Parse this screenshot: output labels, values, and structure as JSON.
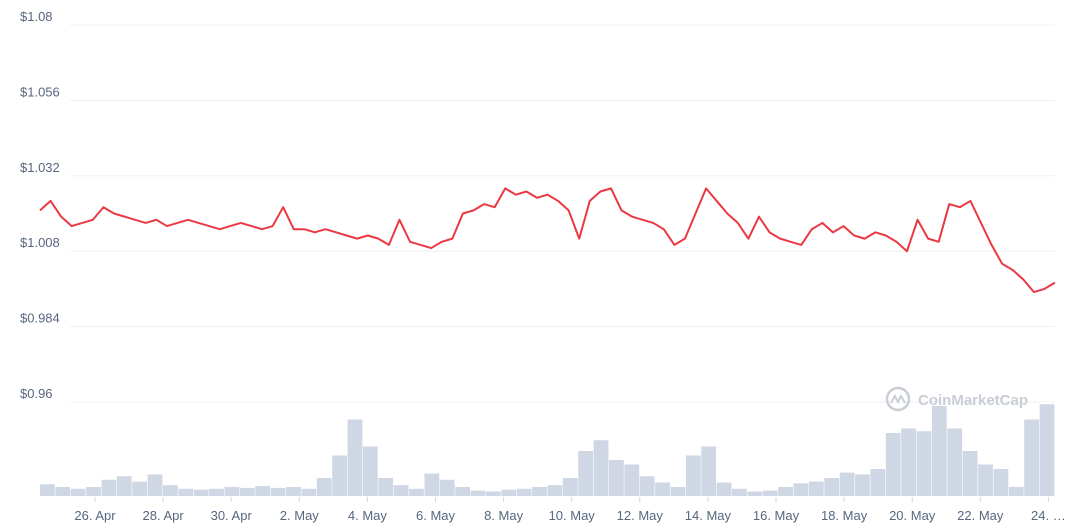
{
  "chart_data": {
    "type": "line",
    "title": "",
    "xlabel": "",
    "ylabel": "",
    "ylim": [
      0.96,
      1.08
    ],
    "yticks": [
      "$1.08",
      "$1.056",
      "$1.032",
      "$1.008",
      "$0.984",
      "$0.96"
    ],
    "ytick_values": [
      1.08,
      1.056,
      1.032,
      1.008,
      0.984,
      0.96
    ],
    "xticks": [
      "26. Apr",
      "28. Apr",
      "30. Apr",
      "2. May",
      "4. May",
      "6. May",
      "8. May",
      "10. May",
      "12. May",
      "14. May",
      "16. May",
      "18. May",
      "20. May",
      "22. May",
      "24. …"
    ],
    "grid": true,
    "line_color": "#ea3943",
    "volume_color": "#cfd6e4",
    "series": [
      {
        "values": [
          1.021,
          1.024,
          1.019,
          1.016,
          1.017,
          1.018,
          1.022,
          1.02,
          1.019,
          1.018,
          1.017,
          1.018,
          1.016,
          1.017,
          1.018,
          1.017,
          1.016,
          1.015,
          1.016,
          1.017,
          1.016,
          1.015,
          1.016,
          1.022,
          1.015,
          1.015,
          1.014,
          1.015,
          1.014,
          1.013,
          1.012,
          1.013,
          1.012,
          1.01,
          1.018,
          1.011,
          1.01,
          1.009,
          1.011,
          1.012,
          1.02,
          1.021,
          1.023,
          1.022,
          1.028,
          1.026,
          1.027,
          1.025,
          1.026,
          1.024,
          1.021,
          1.012,
          1.024,
          1.027,
          1.028,
          1.021,
          1.019,
          1.018,
          1.017,
          1.015,
          1.01,
          1.012,
          1.02,
          1.028,
          1.024,
          1.02,
          1.017,
          1.012,
          1.019,
          1.014,
          1.012,
          1.011,
          1.01,
          1.015,
          1.017,
          1.014,
          1.016,
          1.013,
          1.012,
          1.014,
          1.013,
          1.011,
          1.008,
          1.018,
          1.012,
          1.011,
          1.023,
          1.022,
          1.024,
          1.017,
          1.01,
          1.004,
          1.002,
          0.999,
          0.995,
          0.996,
          0.998
        ]
      }
    ],
    "volume": [
      0.13,
      0.1,
      0.08,
      0.1,
      0.18,
      0.22,
      0.16,
      0.24,
      0.12,
      0.08,
      0.07,
      0.08,
      0.1,
      0.09,
      0.11,
      0.09,
      0.1,
      0.08,
      0.2,
      0.45,
      0.85,
      0.55,
      0.2,
      0.12,
      0.08,
      0.25,
      0.18,
      0.1,
      0.06,
      0.05,
      0.07,
      0.08,
      0.1,
      0.12,
      0.2,
      0.5,
      0.62,
      0.4,
      0.35,
      0.22,
      0.15,
      0.1,
      0.45,
      0.55,
      0.15,
      0.08,
      0.05,
      0.06,
      0.1,
      0.14,
      0.16,
      0.2,
      0.26,
      0.24,
      0.3,
      0.7,
      0.75,
      0.72,
      1.0,
      0.75,
      0.5,
      0.35,
      0.3,
      0.1,
      0.85,
      1.02
    ],
    "watermark": "CoinMarketCap"
  }
}
